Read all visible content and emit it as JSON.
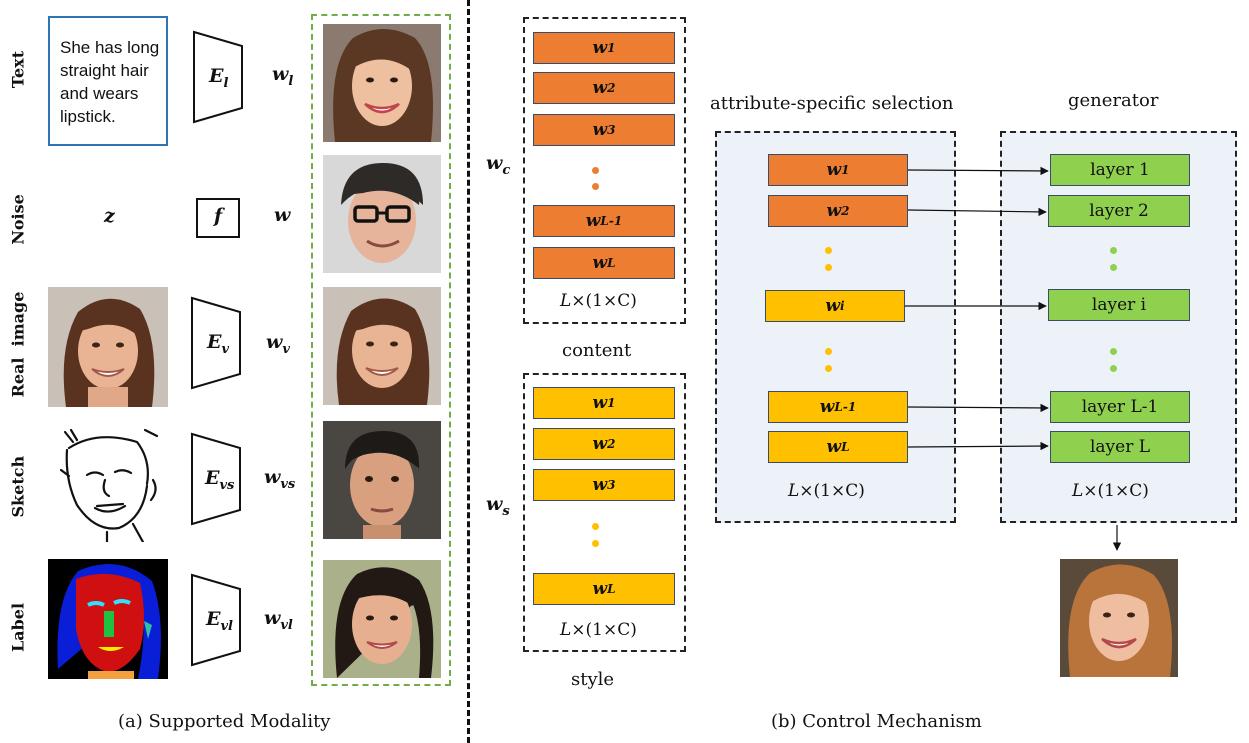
{
  "panel_a": {
    "caption": "(a) Supported Modality",
    "rows": [
      {
        "label": "Text",
        "input_text": "She has long straight hair and wears lipstick.",
        "encoder": "E",
        "encoder_sub": "l",
        "latent": "w",
        "latent_sub": "l"
      },
      {
        "label": "Noise",
        "input_var": "z",
        "encoder": "f",
        "encoder_sub": "",
        "latent": "w",
        "latent_sub": ""
      },
      {
        "label": "Real  image",
        "encoder": "E",
        "encoder_sub": "v",
        "latent": "w",
        "latent_sub": "v"
      },
      {
        "label": "Sketch",
        "encoder": "E",
        "encoder_sub": "vs",
        "latent": "w",
        "latent_sub": "vs"
      },
      {
        "label": "Label",
        "encoder": "E",
        "encoder_sub": "vl",
        "latent": "w",
        "latent_sub": "vl"
      }
    ]
  },
  "panel_b": {
    "caption": "(b) Control Mechanism",
    "content": {
      "symbol": "w",
      "symbol_sub": "c",
      "label": "content",
      "codes": [
        {
          "w": "w",
          "sub": "1"
        },
        {
          "w": "w",
          "sub": "2"
        },
        {
          "w": "w",
          "sub": "3"
        },
        {
          "w": "w",
          "sub": "L-1"
        },
        {
          "w": "w",
          "sub": "L"
        }
      ],
      "dims": "L×(1×C)"
    },
    "style": {
      "symbol": "w",
      "symbol_sub": "s",
      "label": "style",
      "codes": [
        {
          "w": "w",
          "sub": "1"
        },
        {
          "w": "w",
          "sub": "2"
        },
        {
          "w": "w",
          "sub": "3"
        },
        {
          "w": "w",
          "sub": "L"
        }
      ],
      "dims": "L×(1×C)"
    },
    "selection": {
      "title": "attribute-specific selection",
      "codes": [
        {
          "w": "w",
          "sub": "1"
        },
        {
          "w": "w",
          "sub": "2"
        },
        {
          "w": "w",
          "sub": "i"
        },
        {
          "w": "w",
          "sub": "L-1"
        },
        {
          "w": "w",
          "sub": "L"
        }
      ],
      "dims": "L×(1×C)"
    },
    "generator": {
      "title": "generator",
      "layers": [
        "layer 1",
        "layer 2",
        "layer i",
        "layer L-1",
        "layer L"
      ],
      "dims": "L×(1×C)"
    }
  },
  "colors": {
    "content": "#ed7d31",
    "style": "#ffc000",
    "layer": "#8fd14f",
    "text_box_border": "#2e75b6",
    "modality_box_border": "#70ad47"
  }
}
